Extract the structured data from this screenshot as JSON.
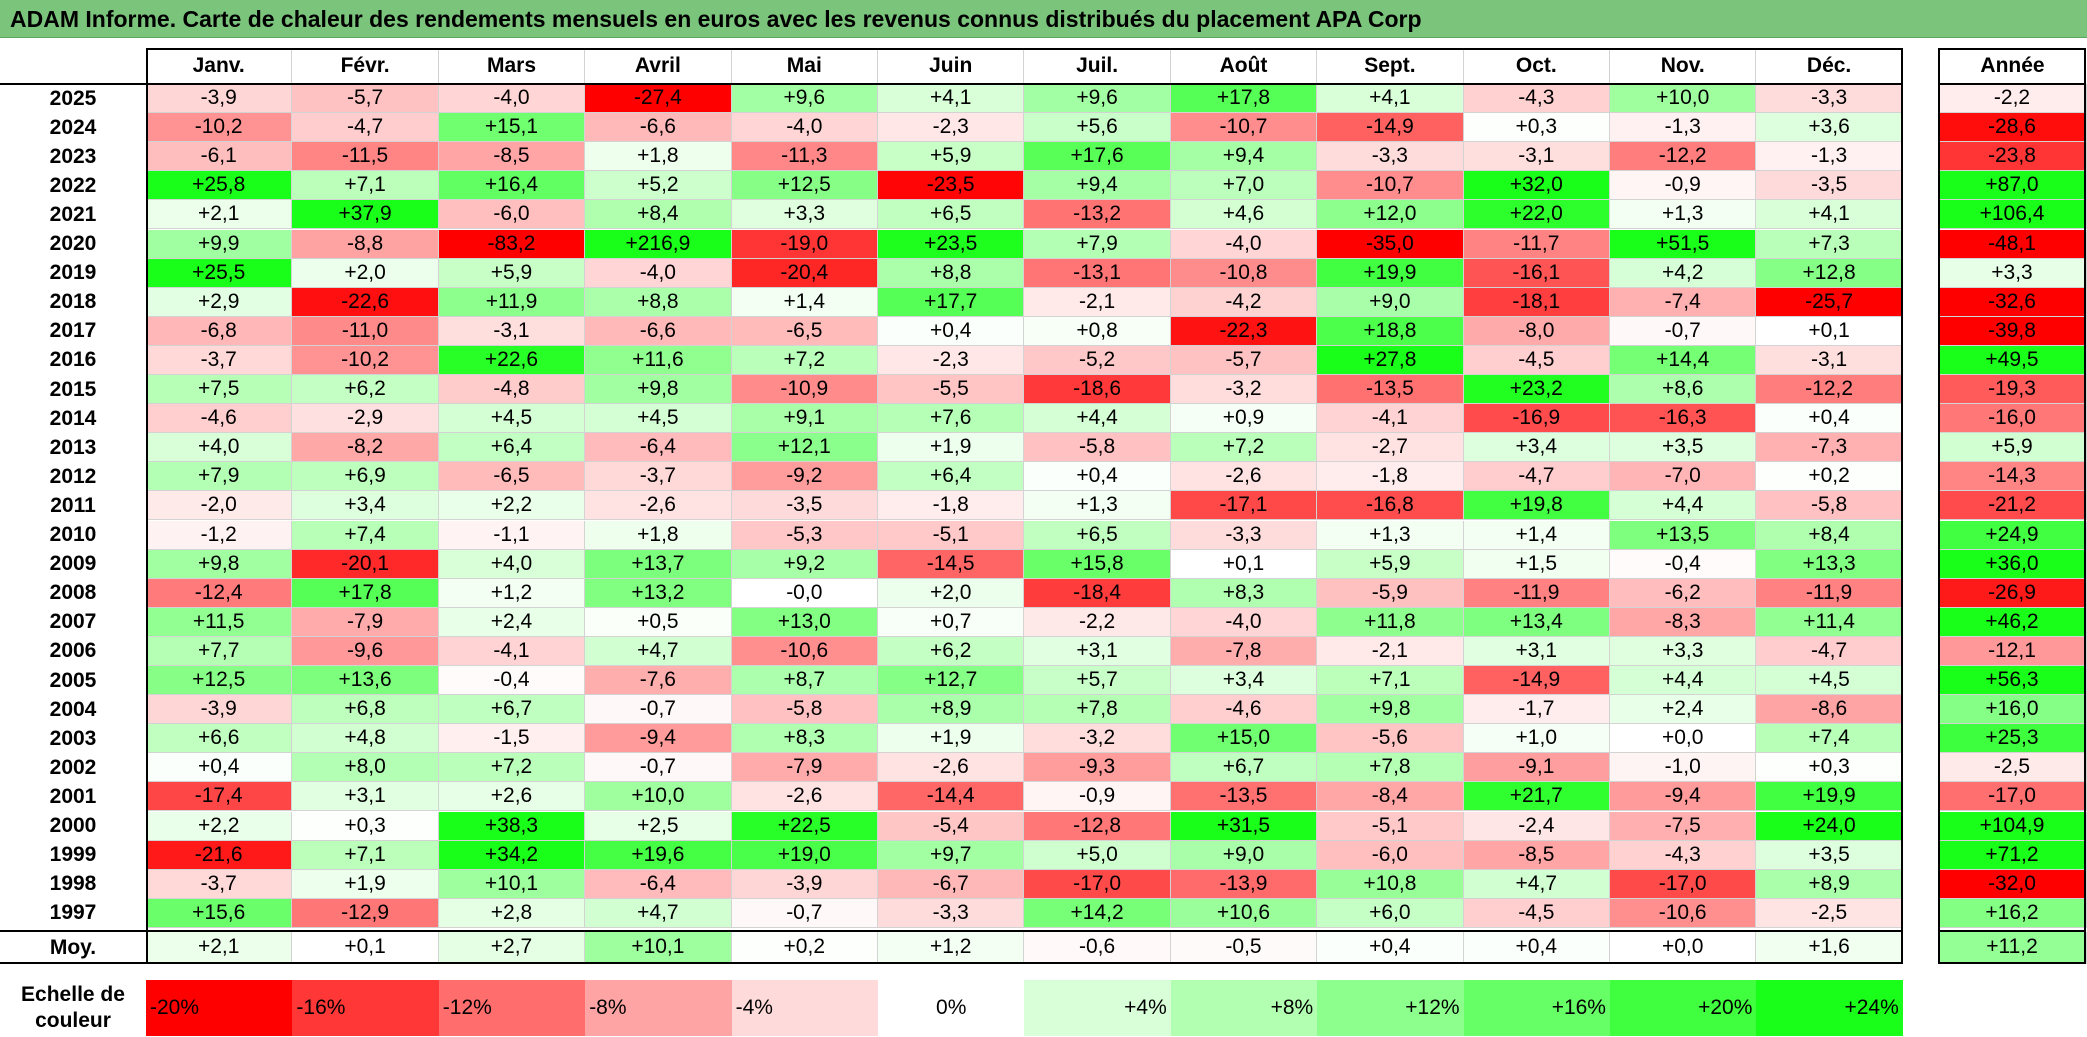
{
  "title": "ADAM Informe. Carte de chaleur des rendements mensuels en euros avec les revenus connus distribués du placement APA Corp",
  "months": [
    "Janv.",
    "Févr.",
    "Mars",
    "Avril",
    "Mai",
    "Juin",
    "Juil.",
    "Août",
    "Sept.",
    "Oct.",
    "Nov.",
    "Déc."
  ],
  "annual_header": "Année",
  "rows": [
    {
      "year": "2025",
      "values": [
        "-3,9",
        "-5,7",
        "-4,0",
        "-27,4",
        "+9,6",
        "+4,1",
        "+9,6",
        "+17,8",
        "+4,1",
        "-4,3",
        "+10,0",
        "-3,3"
      ],
      "annual": "-2,2"
    },
    {
      "year": "2024",
      "values": [
        "-10,2",
        "-4,7",
        "+15,1",
        "-6,6",
        "-4,0",
        "-2,3",
        "+5,6",
        "-10,7",
        "-14,9",
        "+0,3",
        "-1,3",
        "+3,6"
      ],
      "annual": "-28,6"
    },
    {
      "year": "2023",
      "values": [
        "-6,1",
        "-11,5",
        "-8,5",
        "+1,8",
        "-11,3",
        "+5,9",
        "+17,6",
        "+9,4",
        "-3,3",
        "-3,1",
        "-12,2",
        "-1,3"
      ],
      "annual": "-23,8"
    },
    {
      "year": "2022",
      "values": [
        "+25,8",
        "+7,1",
        "+16,4",
        "+5,2",
        "+12,5",
        "-23,5",
        "+9,4",
        "+7,0",
        "-10,7",
        "+32,0",
        "-0,9",
        "-3,5"
      ],
      "annual": "+87,0"
    },
    {
      "year": "2021",
      "values": [
        "+2,1",
        "+37,9",
        "-6,0",
        "+8,4",
        "+3,3",
        "+6,5",
        "-13,2",
        "+4,6",
        "+12,0",
        "+22,0",
        "+1,3",
        "+4,1"
      ],
      "annual": "+106,4"
    },
    {
      "year": "2020",
      "values": [
        "+9,9",
        "-8,8",
        "-83,2",
        "+216,9",
        "-19,0",
        "+23,5",
        "+7,9",
        "-4,0",
        "-35,0",
        "-11,7",
        "+51,5",
        "+7,3"
      ],
      "annual": "-48,1"
    },
    {
      "year": "2019",
      "values": [
        "+25,5",
        "+2,0",
        "+5,9",
        "-4,0",
        "-20,4",
        "+8,8",
        "-13,1",
        "-10,8",
        "+19,9",
        "-16,1",
        "+4,2",
        "+12,8"
      ],
      "annual": "+3,3"
    },
    {
      "year": "2018",
      "values": [
        "+2,9",
        "-22,6",
        "+11,9",
        "+8,8",
        "+1,4",
        "+17,7",
        "-2,1",
        "-4,2",
        "+9,0",
        "-18,1",
        "-7,4",
        "-25,7"
      ],
      "annual": "-32,6"
    },
    {
      "year": "2017",
      "values": [
        "-6,8",
        "-11,0",
        "-3,1",
        "-6,6",
        "-6,5",
        "+0,4",
        "+0,8",
        "-22,3",
        "+18,8",
        "-8,0",
        "-0,7",
        "+0,1"
      ],
      "annual": "-39,8"
    },
    {
      "year": "2016",
      "values": [
        "-3,7",
        "-10,2",
        "+22,6",
        "+11,6",
        "+7,2",
        "-2,3",
        "-5,2",
        "-5,7",
        "+27,8",
        "-4,5",
        "+14,4",
        "-3,1"
      ],
      "annual": "+49,5"
    },
    {
      "year": "2015",
      "values": [
        "+7,5",
        "+6,2",
        "-4,8",
        "+9,8",
        "-10,9",
        "-5,5",
        "-18,6",
        "-3,2",
        "-13,5",
        "+23,2",
        "+8,6",
        "-12,2"
      ],
      "annual": "-19,3"
    },
    {
      "year": "2014",
      "values": [
        "-4,6",
        "-2,9",
        "+4,5",
        "+4,5",
        "+9,1",
        "+7,6",
        "+4,4",
        "+0,9",
        "-4,1",
        "-16,9",
        "-16,3",
        "+0,4"
      ],
      "annual": "-16,0"
    },
    {
      "year": "2013",
      "values": [
        "+4,0",
        "-8,2",
        "+6,4",
        "-6,4",
        "+12,1",
        "+1,9",
        "-5,8",
        "+7,2",
        "-2,7",
        "+3,4",
        "+3,5",
        "-7,3"
      ],
      "annual": "+5,9"
    },
    {
      "year": "2012",
      "values": [
        "+7,9",
        "+6,9",
        "-6,5",
        "-3,7",
        "-9,2",
        "+6,4",
        "+0,4",
        "-2,6",
        "-1,8",
        "-4,7",
        "-7,0",
        "+0,2"
      ],
      "annual": "-14,3"
    },
    {
      "year": "2011",
      "values": [
        "-2,0",
        "+3,4",
        "+2,2",
        "-2,6",
        "-3,5",
        "-1,8",
        "+1,3",
        "-17,1",
        "-16,8",
        "+19,8",
        "+4,4",
        "-5,8"
      ],
      "annual": "-21,2"
    },
    {
      "year": "2010",
      "values": [
        "-1,2",
        "+7,4",
        "-1,1",
        "+1,8",
        "-5,3",
        "-5,1",
        "+6,5",
        "-3,3",
        "+1,3",
        "+1,4",
        "+13,5",
        "+8,4"
      ],
      "annual": "+24,9"
    },
    {
      "year": "2009",
      "values": [
        "+9,8",
        "-20,1",
        "+4,0",
        "+13,7",
        "+9,2",
        "-14,5",
        "+15,8",
        "+0,1",
        "+5,9",
        "+1,5",
        "-0,4",
        "+13,3"
      ],
      "annual": "+36,0"
    },
    {
      "year": "2008",
      "values": [
        "-12,4",
        "+17,8",
        "+1,2",
        "+13,2",
        "-0,0",
        "+2,0",
        "-18,4",
        "+8,3",
        "-5,9",
        "-11,9",
        "-6,2",
        "-11,9"
      ],
      "annual": "-26,9"
    },
    {
      "year": "2007",
      "values": [
        "+11,5",
        "-7,9",
        "+2,4",
        "+0,5",
        "+13,0",
        "+0,7",
        "-2,2",
        "-4,0",
        "+11,8",
        "+13,4",
        "-8,3",
        "+11,4"
      ],
      "annual": "+46,2"
    },
    {
      "year": "2006",
      "values": [
        "+7,7",
        "-9,6",
        "-4,1",
        "+4,7",
        "-10,6",
        "+6,2",
        "+3,1",
        "-7,8",
        "-2,1",
        "+3,1",
        "+3,3",
        "-4,7"
      ],
      "annual": "-12,1"
    },
    {
      "year": "2005",
      "values": [
        "+12,5",
        "+13,6",
        "-0,4",
        "-7,6",
        "+8,7",
        "+12,7",
        "+5,7",
        "+3,4",
        "+7,1",
        "-14,9",
        "+4,4",
        "+4,5"
      ],
      "annual": "+56,3"
    },
    {
      "year": "2004",
      "values": [
        "-3,9",
        "+6,8",
        "+6,7",
        "-0,7",
        "-5,8",
        "+8,9",
        "+7,8",
        "-4,6",
        "+9,8",
        "-1,7",
        "+2,4",
        "-8,6"
      ],
      "annual": "+16,0"
    },
    {
      "year": "2003",
      "values": [
        "+6,6",
        "+4,8",
        "-1,5",
        "-9,4",
        "+8,3",
        "+1,9",
        "-3,2",
        "+15,0",
        "-5,6",
        "+1,0",
        "+0,0",
        "+7,4"
      ],
      "annual": "+25,3"
    },
    {
      "year": "2002",
      "values": [
        "+0,4",
        "+8,0",
        "+7,2",
        "-0,7",
        "-7,9",
        "-2,6",
        "-9,3",
        "+6,7",
        "+7,8",
        "-9,1",
        "-1,0",
        "+0,3"
      ],
      "annual": "-2,5"
    },
    {
      "year": "2001",
      "values": [
        "-17,4",
        "+3,1",
        "+2,6",
        "+10,0",
        "-2,6",
        "-14,4",
        "-0,9",
        "-13,5",
        "-8,4",
        "+21,7",
        "-9,4",
        "+19,9"
      ],
      "annual": "-17,0"
    },
    {
      "year": "2000",
      "values": [
        "+2,2",
        "+0,3",
        "+38,3",
        "+2,5",
        "+22,5",
        "-5,4",
        "-12,8",
        "+31,5",
        "-5,1",
        "-2,4",
        "-7,5",
        "+24,0"
      ],
      "annual": "+104,9"
    },
    {
      "year": "1999",
      "values": [
        "-21,6",
        "+7,1",
        "+34,2",
        "+19,6",
        "+19,0",
        "+9,7",
        "+5,0",
        "+9,0",
        "-6,0",
        "-8,5",
        "-4,3",
        "+3,5"
      ],
      "annual": "+71,2"
    },
    {
      "year": "1998",
      "values": [
        "-3,7",
        "+1,9",
        "+10,1",
        "-6,4",
        "-3,9",
        "-6,7",
        "-17,0",
        "-13,9",
        "+10,8",
        "+4,7",
        "-17,0",
        "+8,9"
      ],
      "annual": "-32,0"
    },
    {
      "year": "1997",
      "values": [
        "+15,6",
        "-12,9",
        "+2,8",
        "+4,7",
        "-0,7",
        "-3,3",
        "+14,2",
        "+10,6",
        "+6,0",
        "-4,5",
        "-10,6",
        "-2,5"
      ],
      "annual": "+16,2"
    }
  ],
  "average": {
    "label": "Moy.",
    "values": [
      "+2,1",
      "+0,1",
      "+2,7",
      "+10,1",
      "+0,2",
      "+1,2",
      "-0,6",
      "-0,5",
      "+0,4",
      "+0,4",
      "+0,0",
      "+1,6"
    ],
    "annual": "+11,2"
  },
  "scale": {
    "label": "Echelle de couleur",
    "items": [
      "-20%",
      "-16%",
      "-12%",
      "-8%",
      "-4%",
      "0%",
      "+4%",
      "+8%",
      "+12%",
      "+16%",
      "+20%",
      "+24%"
    ],
    "colors": [
      "#ff0000",
      "#ff3737",
      "#ff6d6d",
      "#ffa4a4",
      "#ffdada",
      "#ffffff",
      "#d9ffd9",
      "#b2ffb2",
      "#8cff8c",
      "#66ff66",
      "#3fff3f",
      "#19ff19"
    ]
  },
  "colors": {
    "title_bar": "#7bc47b",
    "negative": "#ff0000",
    "positive": "#19ff19",
    "neutral": "#ffffff"
  }
}
